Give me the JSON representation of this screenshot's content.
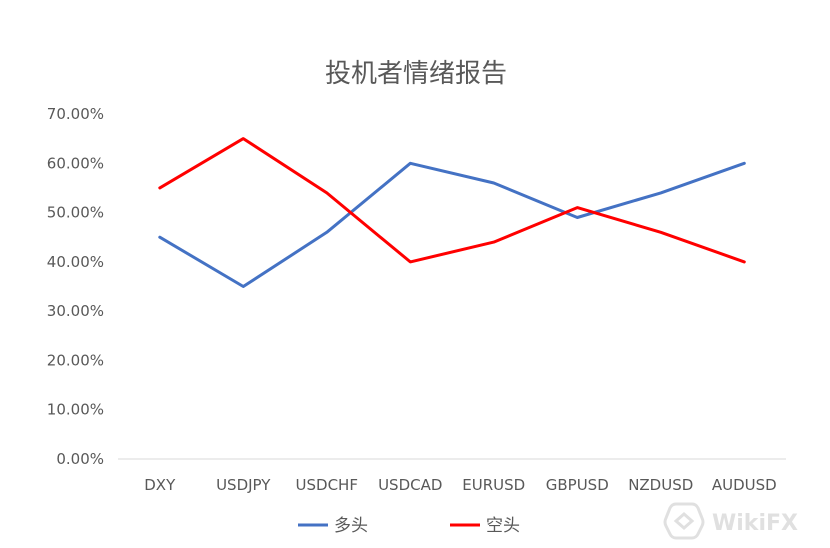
{
  "chart_data": {
    "type": "line",
    "title": "投机者情绪报告",
    "categories": [
      "DXY",
      "USDJPY",
      "USDCHF",
      "USDCAD",
      "EURUSD",
      "GBPUSD",
      "NZDUSD",
      "AUDUSD"
    ],
    "series": [
      {
        "name": "多头",
        "color": "#4472c4",
        "values": [
          0.45,
          0.35,
          0.46,
          0.6,
          0.56,
          0.49,
          0.54,
          0.6
        ]
      },
      {
        "name": "空头",
        "color": "#ff0000",
        "values": [
          0.55,
          0.65,
          0.54,
          0.4,
          0.44,
          0.51,
          0.46,
          0.4
        ]
      }
    ],
    "ylim": [
      0,
      0.7
    ],
    "yticks": [
      "0.00%",
      "10.00%",
      "20.00%",
      "30.00%",
      "40.00%",
      "50.00%",
      "60.00%",
      "70.00%"
    ],
    "grid": false,
    "legend_position": "bottom"
  },
  "watermark": {
    "text": "WikiFX",
    "icon": "wikifx-logo-icon"
  }
}
